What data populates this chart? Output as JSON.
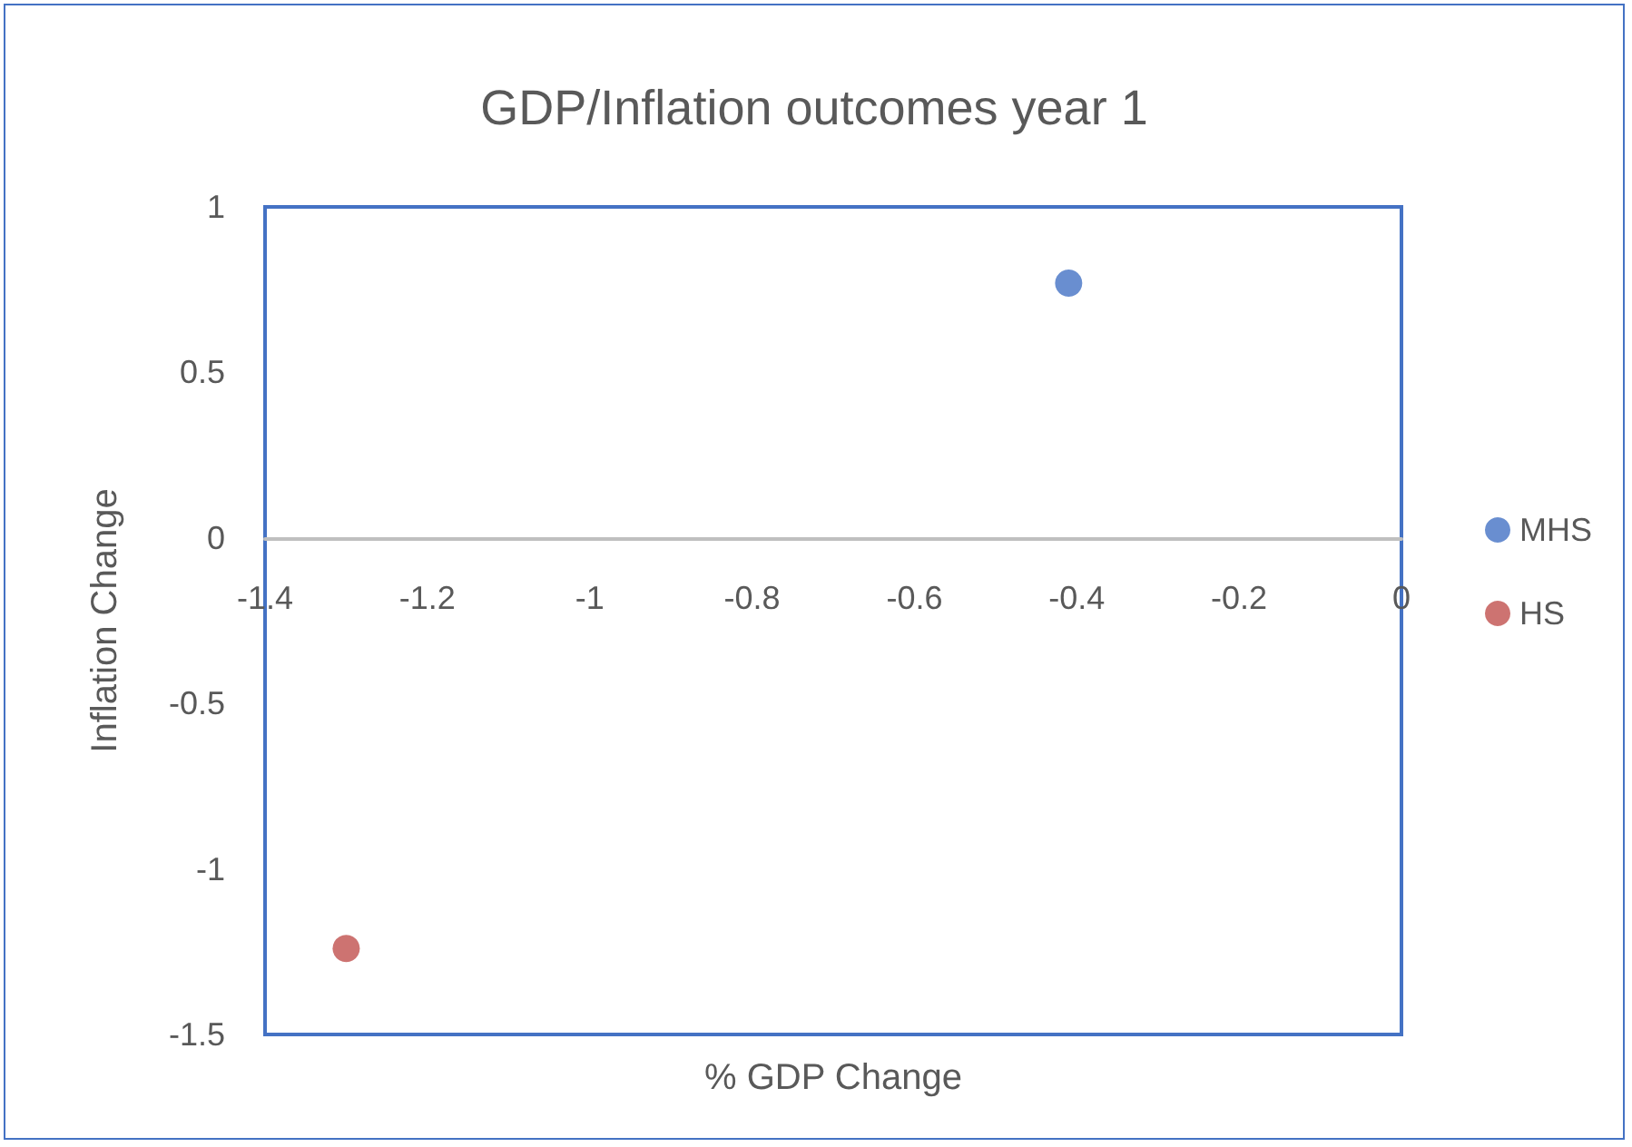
{
  "chart_data": {
    "type": "scatter",
    "title": "GDP/Inflation outcomes year 1",
    "xlabel": "% GDP Change",
    "ylabel": "Inflation Change",
    "series": [
      {
        "name": "MHS",
        "color": "#4472c4",
        "x": [
          -0.41
        ],
        "values": [
          0.77
        ]
      },
      {
        "name": "HS",
        "color": "#c0504d",
        "x": [
          -1.3
        ],
        "values": [
          -1.24
        ]
      }
    ],
    "xlim": [
      -1.4,
      0
    ],
    "xticks": [
      -1.4,
      -1.2,
      -1,
      -0.8,
      -0.6,
      -0.4,
      -0.2,
      0
    ],
    "ylim": [
      -1.5,
      1
    ],
    "yticks": [
      -1.5,
      -1,
      -0.5,
      0,
      0.5,
      1
    ],
    "grid": false,
    "legend": "right",
    "marker": "circle"
  }
}
